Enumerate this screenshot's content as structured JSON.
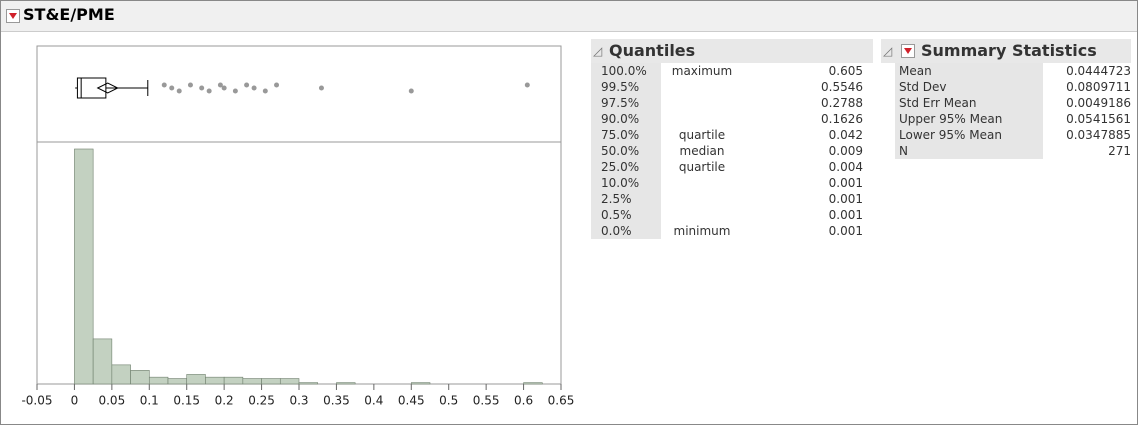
{
  "header": {
    "title": "ST&E/PME"
  },
  "chart_data": {
    "type": "histogram",
    "bins": [
      0,
      0.025,
      0.05,
      0.075,
      0.1,
      0.125,
      0.15,
      0.175,
      0.2,
      0.225,
      0.25,
      0.275,
      0.3,
      0.325,
      0.35,
      0.375,
      0.4,
      0.425,
      0.45,
      0.475,
      0.5,
      0.525,
      0.55,
      0.575,
      0.6,
      0.625
    ],
    "counts": [
      172,
      33,
      14,
      10,
      5,
      4,
      7,
      5,
      5,
      4,
      4,
      4,
      1,
      0,
      1,
      0,
      0,
      0,
      1,
      0,
      0,
      0,
      0,
      0,
      1
    ],
    "color": "#c3d1c1",
    "xlim": [
      -0.05,
      0.65
    ],
    "xticks": [
      -0.05,
      0,
      0.05,
      0.1,
      0.15,
      0.2,
      0.25,
      0.3,
      0.35,
      0.4,
      0.45,
      0.5,
      0.55,
      0.6,
      0.65
    ],
    "box": {
      "q1": 0.004,
      "median": 0.009,
      "q3": 0.042,
      "low": 0.001,
      "high": 0.098,
      "mean": 0.0444723
    },
    "outliers": [
      0.12,
      0.13,
      0.14,
      0.155,
      0.17,
      0.18,
      0.195,
      0.2,
      0.215,
      0.23,
      0.24,
      0.255,
      0.27,
      0.33,
      0.45,
      0.605
    ]
  },
  "quantiles": {
    "title": "Quantiles",
    "rows": [
      [
        "100.0%",
        "maximum",
        0.605
      ],
      [
        "99.5%",
        "",
        0.5546
      ],
      [
        "97.5%",
        "",
        0.2788
      ],
      [
        "90.0%",
        "",
        0.1626
      ],
      [
        "75.0%",
        "quartile",
        0.042
      ],
      [
        "50.0%",
        "median",
        0.009
      ],
      [
        "25.0%",
        "quartile",
        0.004
      ],
      [
        "10.0%",
        "",
        0.001
      ],
      [
        "2.5%",
        "",
        0.001
      ],
      [
        "0.5%",
        "",
        0.001
      ],
      [
        "0.0%",
        "minimum",
        0.001
      ]
    ]
  },
  "summary": {
    "title": "Summary Statistics",
    "rows": [
      [
        "Mean",
        0.0444723
      ],
      [
        "Std Dev",
        0.0809711
      ],
      [
        "Std Err Mean",
        0.0049186
      ],
      [
        "Upper 95% Mean",
        0.0541561
      ],
      [
        "Lower 95% Mean",
        0.0347885
      ],
      [
        "N",
        271
      ]
    ]
  }
}
